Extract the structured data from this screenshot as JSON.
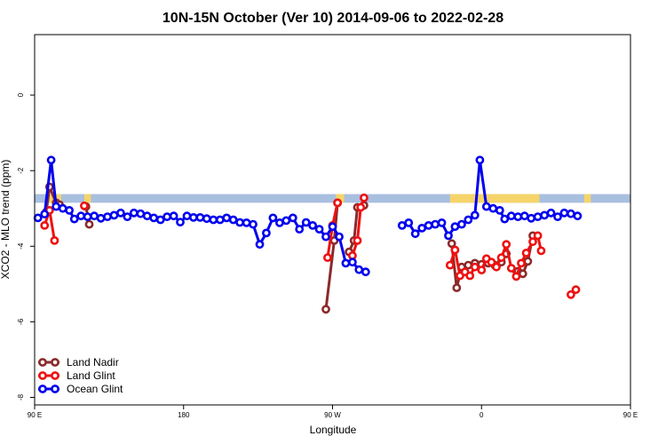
{
  "chart_data": {
    "type": "line",
    "title": "10N-15N October (Ver 10)   2014-09-06 to 2022-02-28",
    "xlabel": "Longitude",
    "ylabel": "XCO2 - MLO trend (ppm)",
    "xlim": [
      90,
      450
    ],
    "ylim": [
      -8.2,
      1.6
    ],
    "x_ticks": [
      90,
      180,
      270,
      360,
      450,
      540
    ],
    "x_tick_labels": [
      "90 E",
      "180",
      "90 W",
      "0",
      "90 E",
      "180"
    ],
    "y_ticks": [
      0,
      -2,
      -4,
      -6,
      -8
    ],
    "y_tick_labels": [
      "0",
      "-2",
      "-4",
      "-6",
      "-8"
    ],
    "grid": false,
    "legend_position": "bottom-left",
    "background_band": {
      "y_from": -2.62,
      "y_to": -2.85,
      "color": "#a9bfe0",
      "land_color": "#f5d56a"
    },
    "land_segments": [
      [
        99,
        106
      ],
      [
        120,
        124
      ],
      [
        272,
        277
      ],
      [
        341,
        395
      ],
      [
        422,
        426
      ],
      [
        457,
        466
      ],
      [
        480,
        484
      ]
    ],
    "series": [
      {
        "name": "Land Nadir",
        "color": "#8b2a2a",
        "segments": [
          [
            [
              97,
              -3.1
            ],
            [
              99,
              -2.43
            ],
            [
              103,
              -2.85
            ],
            [
              105,
              -2.9
            ]
          ],
          [
            [
              121,
              -2.95
            ],
            [
              123,
              -3.42
            ]
          ],
          [
            [
              266,
              -5.67
            ],
            [
              271,
              -3.85
            ],
            [
              273,
              -2.85
            ]
          ],
          [
            [
              280,
              -4.15
            ],
            [
              283,
              -3.85
            ],
            [
              285,
              -2.97
            ],
            [
              289,
              -2.92
            ]
          ],
          [
            [
              342,
              -3.93
            ],
            [
              345,
              -5.1
            ],
            [
              348,
              -4.55
            ],
            [
              352,
              -4.5
            ],
            [
              356,
              -4.45
            ],
            [
              360,
              -4.48
            ],
            [
              364,
              -4.45
            ],
            [
              368,
              -4.5
            ],
            [
              372,
              -4.42
            ],
            [
              375,
              -4.2
            ]
          ],
          [
            [
              382,
              -4.66
            ],
            [
              385,
              -4.73
            ],
            [
              388,
              -4.4
            ],
            [
              391,
              -3.72
            ]
          ]
        ]
      },
      {
        "name": "Land Glint",
        "color": "#ee1111",
        "segments": [
          [
            [
              96,
              -3.45
            ],
            [
              99,
              -3.05
            ],
            [
              102,
              -3.85
            ]
          ],
          [
            [
              120,
              -2.93
            ]
          ],
          [
            [
              267,
              -4.3
            ],
            [
              270,
              -3.45
            ],
            [
              273,
              -2.85
            ]
          ],
          [
            [
              282,
              -4.25
            ],
            [
              285,
              -3.85
            ],
            [
              287,
              -2.97
            ],
            [
              289,
              -2.72
            ]
          ],
          [
            [
              341,
              -4.5
            ],
            [
              344,
              -4.1
            ],
            [
              347,
              -4.78
            ],
            [
              350,
              -4.68
            ],
            [
              353,
              -4.78
            ],
            [
              356,
              -4.55
            ],
            [
              360,
              -4.63
            ],
            [
              363,
              -4.33
            ],
            [
              366,
              -4.42
            ],
            [
              369,
              -4.55
            ],
            [
              372,
              -4.3
            ],
            [
              375,
              -3.95
            ],
            [
              378,
              -4.58
            ],
            [
              381,
              -4.8
            ],
            [
              384,
              -4.45
            ],
            [
              387,
              -4.18
            ],
            [
              391,
              -3.88
            ],
            [
              394,
              -3.72
            ],
            [
              396,
              -4.12
            ]
          ],
          [
            [
              414,
              -5.28
            ],
            [
              417,
              -5.15
            ]
          ]
        ]
      },
      {
        "name": "Ocean Glint",
        "color": "#0000ee",
        "segments": [
          [
            [
              92,
              -3.25
            ],
            [
              96,
              -3.15
            ],
            [
              100,
              -1.72
            ],
            [
              103,
              -2.95
            ],
            [
              107,
              -3.0
            ],
            [
              111,
              -3.05
            ],
            [
              114,
              -3.28
            ],
            [
              118,
              -3.2
            ],
            [
              122,
              -3.22
            ],
            [
              126,
              -3.2
            ],
            [
              130,
              -3.26
            ],
            [
              134,
              -3.22
            ],
            [
              138,
              -3.18
            ],
            [
              142,
              -3.12
            ],
            [
              146,
              -3.22
            ],
            [
              150,
              -3.12
            ],
            [
              154,
              -3.14
            ],
            [
              158,
              -3.2
            ],
            [
              162,
              -3.25
            ],
            [
              166,
              -3.3
            ],
            [
              170,
              -3.22
            ],
            [
              174,
              -3.2
            ],
            [
              178,
              -3.36
            ],
            [
              182,
              -3.2
            ],
            [
              186,
              -3.24
            ],
            [
              190,
              -3.24
            ],
            [
              194,
              -3.27
            ],
            [
              198,
              -3.3
            ],
            [
              202,
              -3.3
            ],
            [
              206,
              -3.25
            ],
            [
              210,
              -3.3
            ],
            [
              214,
              -3.37
            ],
            [
              218,
              -3.38
            ],
            [
              222,
              -3.42
            ],
            [
              226,
              -3.95
            ],
            [
              230,
              -3.65
            ],
            [
              234,
              -3.25
            ],
            [
              238,
              -3.38
            ],
            [
              242,
              -3.32
            ],
            [
              246,
              -3.25
            ],
            [
              250,
              -3.55
            ],
            [
              254,
              -3.37
            ],
            [
              258,
              -3.45
            ],
            [
              262,
              -3.55
            ],
            [
              266,
              -3.75
            ],
            [
              270,
              -3.48
            ],
            [
              274,
              -3.75
            ],
            [
              278,
              -4.45
            ],
            [
              282,
              -4.42
            ],
            [
              286,
              -4.62
            ],
            [
              290,
              -4.68
            ]
          ],
          [
            [
              312,
              -3.45
            ],
            [
              316,
              -3.38
            ],
            [
              320,
              -3.67
            ],
            [
              324,
              -3.52
            ],
            [
              328,
              -3.45
            ],
            [
              332,
              -3.42
            ],
            [
              336,
              -3.38
            ],
            [
              340,
              -3.72
            ],
            [
              344,
              -3.48
            ],
            [
              348,
              -3.42
            ],
            [
              352,
              -3.3
            ],
            [
              356,
              -3.18
            ],
            [
              359,
              -1.72
            ],
            [
              363,
              -2.95
            ],
            [
              367,
              -3.0
            ],
            [
              371,
              -3.05
            ],
            [
              374,
              -3.28
            ],
            [
              378,
              -3.2
            ],
            [
              382,
              -3.22
            ],
            [
              386,
              -3.2
            ],
            [
              390,
              -3.26
            ],
            [
              394,
              -3.22
            ],
            [
              398,
              -3.18
            ],
            [
              402,
              -3.12
            ],
            [
              406,
              -3.22
            ],
            [
              410,
              -3.12
            ],
            [
              414,
              -3.14
            ],
            [
              418,
              -3.2
            ]
          ]
        ]
      }
    ]
  }
}
